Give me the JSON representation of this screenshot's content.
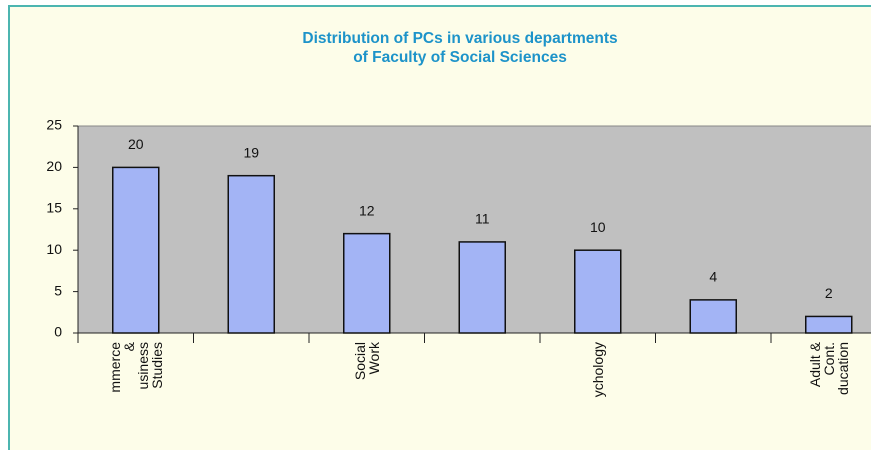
{
  "chart_data": {
    "type": "bar",
    "title": "Distribution of PCs in various departments\nof Faculty of Social Sciences",
    "categories": [
      "mmerce\n&\nusiness\nStudies",
      null,
      "Social\nWork",
      null,
      "ychology",
      null,
      "Adult &\nCont.\nducation"
    ],
    "values": [
      20,
      19,
      12,
      11,
      10,
      4,
      2
    ],
    "color": "#a3b4f5",
    "ylim": [
      0,
      25
    ],
    "yticks": [
      0,
      5,
      10,
      15,
      20,
      25
    ],
    "grid": false
  }
}
